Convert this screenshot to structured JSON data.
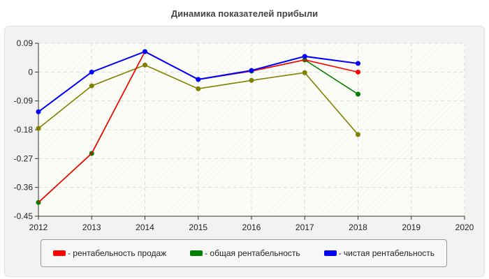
{
  "title": "Динамика показателей прибыли",
  "chart_data": {
    "type": "line",
    "title": "Динамика показателей прибыли",
    "x": [
      2012,
      2013,
      2014,
      2015,
      2016,
      2017,
      2018
    ],
    "xticks": [
      "2012",
      "2013",
      "2014",
      "2015",
      "2016",
      "2017",
      "2018",
      "2019",
      "2020"
    ],
    "xlim": [
      2012,
      2020
    ],
    "yticks": [
      "0.09",
      "0",
      "-0.09",
      "-0.18",
      "-0.27",
      "-0.36",
      "-0.45"
    ],
    "ylim": [
      -0.45,
      0.09
    ],
    "grid": true,
    "legend_position": "bottom",
    "series": [
      {
        "name": "- рентабельность продаж",
        "color": "#ff0000",
        "values": [
          -0.407,
          -0.254,
          0.064,
          -0.023,
          0.003,
          0.038,
          0.0
        ]
      },
      {
        "name": "- общая рентабельность",
        "color": "#008000",
        "values": [
          -0.407,
          -0.254,
          0.064,
          -0.023,
          0.003,
          0.038,
          -0.069
        ]
      },
      {
        "name": "- чистая рентабельность",
        "color": "#0000ff",
        "values": [
          -0.124,
          0.0,
          0.064,
          -0.023,
          0.005,
          0.049,
          0.027
        ]
      },
      {
        "color": "#808000",
        "values": [
          -0.176,
          -0.043,
          0.022,
          -0.052,
          -0.026,
          -0.002,
          -0.195
        ]
      }
    ]
  }
}
